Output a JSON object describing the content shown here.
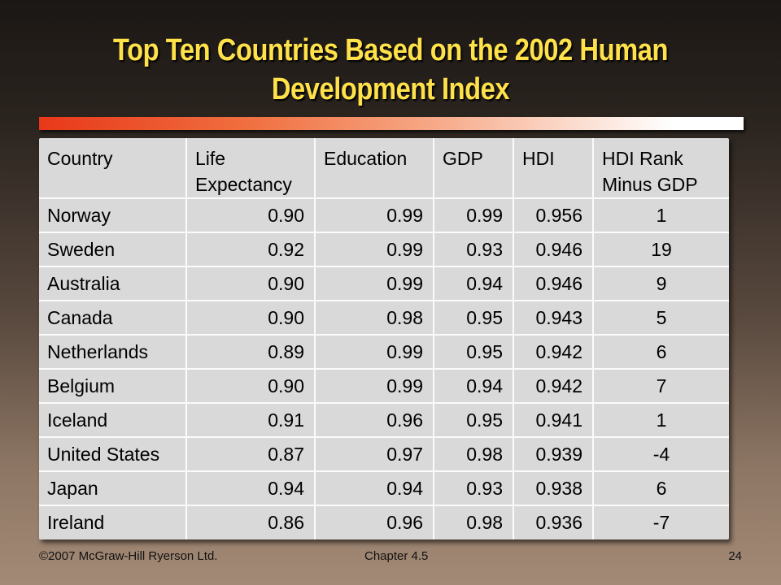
{
  "title": "Top Ten Countries Based on the 2002 Human Development Index",
  "table": {
    "headers": [
      "Country",
      "Life Expectancy",
      "Education",
      "GDP",
      "HDI",
      "HDI Rank Minus GDP"
    ],
    "rows": [
      [
        "Norway",
        "0.90",
        "0.99",
        "0.99",
        "0.956",
        "1"
      ],
      [
        "Sweden",
        "0.92",
        "0.99",
        "0.93",
        "0.946",
        "19"
      ],
      [
        "Australia",
        "0.90",
        "0.99",
        "0.94",
        "0.946",
        "9"
      ],
      [
        "Canada",
        "0.90",
        "0.98",
        "0.95",
        "0.943",
        "5"
      ],
      [
        "Netherlands",
        "0.89",
        "0.99",
        "0.95",
        "0.942",
        "6"
      ],
      [
        "Belgium",
        "0.90",
        "0.99",
        "0.94",
        "0.942",
        "7"
      ],
      [
        "Iceland",
        "0.91",
        "0.96",
        "0.95",
        "0.941",
        "1"
      ],
      [
        "United States",
        "0.87",
        "0.97",
        "0.98",
        "0.939",
        "-4"
      ],
      [
        "Japan",
        "0.94",
        "0.94",
        "0.93",
        "0.938",
        "6"
      ],
      [
        "Ireland",
        "0.86",
        "0.96",
        "0.98",
        "0.936",
        "-7"
      ]
    ]
  },
  "footer": {
    "copyright": "©2007 McGraw-Hill Ryerson Ltd.",
    "chapter": "Chapter 4.5",
    "page": "24"
  },
  "colors": {
    "title": "#ffe14a",
    "table_bg": "#d9d9d9",
    "accent_start": "#e8381a"
  }
}
